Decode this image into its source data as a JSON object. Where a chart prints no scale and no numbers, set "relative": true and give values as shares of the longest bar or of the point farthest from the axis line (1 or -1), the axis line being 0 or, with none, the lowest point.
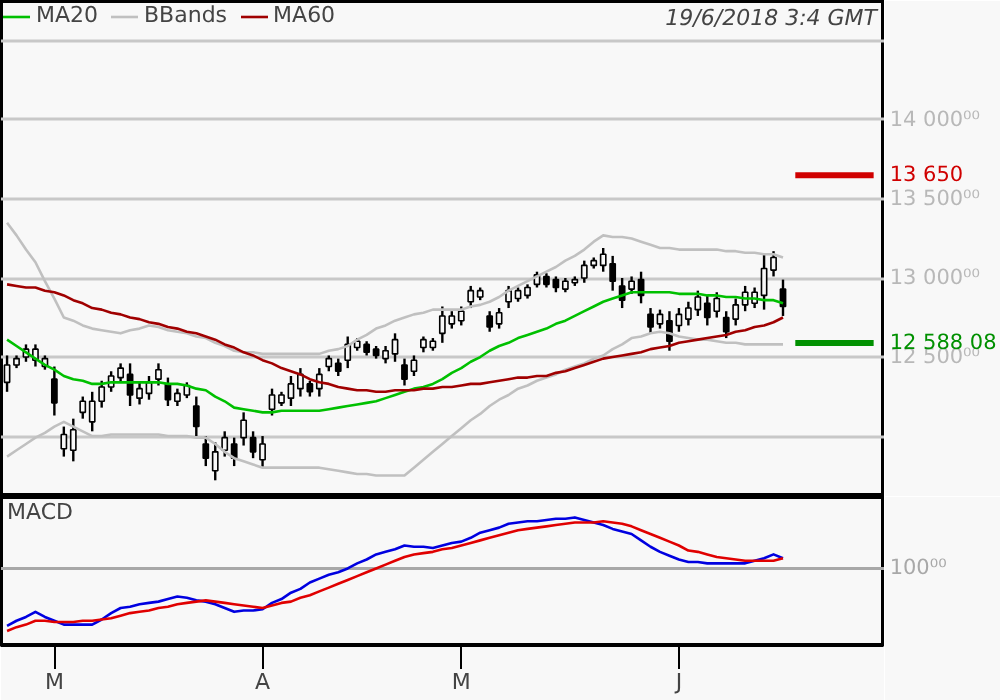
{
  "chart_data": [
    {
      "type": "candlestick",
      "legend": "top left",
      "grid": "y",
      "tick_labels": "y",
      "annotations": [
        "19/6/2018 3:4 GMT"
      ],
      "ylim": [
        11627,
        14753
      ],
      "yticks": [
        {
          "value": 12000,
          "label": null
        },
        {
          "value": 12500,
          "label": "12 500⁰⁰"
        },
        {
          "value": 13000,
          "label": "13 000⁰⁰"
        },
        {
          "value": 13500,
          "label": "13 500⁰⁰"
        },
        {
          "value": 14000,
          "label": "14 000⁰⁰"
        },
        {
          "value": 14500,
          "label": null
        }
      ],
      "categories": [
        null,
        null,
        null,
        null,
        null,
        null,
        null,
        null,
        null,
        null,
        null,
        null,
        null,
        null,
        null,
        null,
        null,
        null,
        null,
        null,
        null,
        null,
        null,
        null,
        null,
        null,
        null,
        null,
        null,
        null,
        null,
        null,
        null,
        null,
        null,
        null,
        null,
        null,
        null,
        null,
        null,
        null,
        null,
        null,
        null,
        null,
        null,
        null,
        null,
        null,
        null,
        null,
        null,
        null,
        null,
        null,
        null,
        null,
        null,
        null,
        null,
        null,
        null,
        null,
        null,
        null,
        null,
        null,
        null,
        null,
        null,
        null,
        null,
        null,
        null,
        null,
        null,
        null,
        null,
        null,
        null,
        null,
        null
      ],
      "ohlc": [
        [
          12340,
          12510,
          12280,
          12450
        ],
        [
          12450,
          12510,
          12430,
          12490
        ],
        [
          12500,
          12580,
          12470,
          12550
        ],
        [
          12480,
          12580,
          12440,
          12550
        ],
        [
          12440,
          12510,
          12420,
          12490
        ],
        [
          12360,
          12440,
          12130,
          12210
        ],
        [
          11920,
          12060,
          11870,
          12010
        ],
        [
          11910,
          12110,
          11840,
          12040
        ],
        [
          12150,
          12250,
          12110,
          12220
        ],
        [
          12090,
          12280,
          12030,
          12220
        ],
        [
          12220,
          12350,
          12180,
          12310
        ],
        [
          12310,
          12410,
          12280,
          12380
        ],
        [
          12370,
          12460,
          12340,
          12430
        ],
        [
          12390,
          12460,
          12190,
          12260
        ],
        [
          12240,
          12340,
          12200,
          12300
        ],
        [
          12270,
          12380,
          12230,
          12340
        ],
        [
          12360,
          12460,
          12320,
          12420
        ],
        [
          12330,
          12370,
          12190,
          12230
        ],
        [
          12220,
          12300,
          12190,
          12270
        ],
        [
          12260,
          12340,
          12240,
          12320
        ],
        [
          12190,
          12250,
          12000,
          12060
        ],
        [
          11950,
          12000,
          11810,
          11860
        ],
        [
          11780,
          11960,
          11720,
          11900
        ],
        [
          11910,
          12030,
          11870,
          11990
        ],
        [
          11950,
          11990,
          11810,
          11860
        ],
        [
          11990,
          12150,
          11940,
          12100
        ],
        [
          11990,
          12030,
          11860,
          11900
        ],
        [
          11850,
          12000,
          11800,
          11950
        ],
        [
          12170,
          12300,
          12130,
          12260
        ],
        [
          12210,
          12280,
          12190,
          12260
        ],
        [
          12240,
          12380,
          12190,
          12330
        ],
        [
          12300,
          12430,
          12250,
          12390
        ],
        [
          12330,
          12350,
          12250,
          12280
        ],
        [
          12300,
          12430,
          12250,
          12390
        ],
        [
          12440,
          12510,
          12410,
          12490
        ],
        [
          12460,
          12490,
          12380,
          12410
        ],
        [
          12480,
          12630,
          12430,
          12580
        ],
        [
          12560,
          12620,
          12540,
          12600
        ],
        [
          12580,
          12600,
          12510,
          12530
        ],
        [
          12550,
          12570,
          12490,
          12510
        ],
        [
          12490,
          12570,
          12460,
          12540
        ],
        [
          12520,
          12650,
          12470,
          12610
        ],
        [
          12450,
          12490,
          12320,
          12360
        ],
        [
          12410,
          12510,
          12380,
          12480
        ],
        [
          12560,
          12630,
          12530,
          12610
        ],
        [
          12560,
          12620,
          12540,
          12600
        ],
        [
          12650,
          12820,
          12590,
          12760
        ],
        [
          12710,
          12790,
          12680,
          12760
        ],
        [
          12730,
          12820,
          12700,
          12790
        ],
        [
          12850,
          12950,
          12810,
          12920
        ],
        [
          12880,
          12940,
          12860,
          12920
        ],
        [
          12760,
          12790,
          12660,
          12690
        ],
        [
          12710,
          12810,
          12680,
          12780
        ],
        [
          12850,
          12950,
          12810,
          12920
        ],
        [
          12870,
          12940,
          12850,
          12920
        ],
        [
          12890,
          12960,
          12870,
          12940
        ],
        [
          12960,
          13040,
          12940,
          13020
        ],
        [
          13010,
          13030,
          12940,
          12960
        ],
        [
          12990,
          13010,
          12910,
          12940
        ],
        [
          12930,
          13000,
          12910,
          12980
        ],
        [
          12970,
          13010,
          12950,
          12990
        ],
        [
          13000,
          13110,
          12970,
          13080
        ],
        [
          13080,
          13130,
          13060,
          13110
        ],
        [
          13080,
          13190,
          13040,
          13150
        ],
        [
          13090,
          13140,
          12920,
          12980
        ],
        [
          12950,
          13000,
          12810,
          12860
        ],
        [
          12930,
          13010,
          12900,
          12980
        ],
        [
          12990,
          13040,
          12840,
          12890
        ],
        [
          12770,
          12810,
          12650,
          12690
        ],
        [
          12710,
          12800,
          12680,
          12770
        ],
        [
          12730,
          12790,
          12540,
          12600
        ],
        [
          12700,
          12810,
          12660,
          12770
        ],
        [
          12740,
          12850,
          12700,
          12810
        ],
        [
          12800,
          12920,
          12760,
          12880
        ],
        [
          12840,
          12890,
          12700,
          12750
        ],
        [
          12790,
          12910,
          12750,
          12870
        ],
        [
          12750,
          12790,
          12620,
          12660
        ],
        [
          12740,
          12870,
          12700,
          12830
        ],
        [
          12830,
          12950,
          12790,
          12910
        ],
        [
          12840,
          12940,
          12810,
          12910
        ],
        [
          12890,
          13150,
          12800,
          13060
        ],
        [
          13050,
          13170,
          13010,
          13130
        ],
        [
          12930,
          12990,
          12760,
          12820
        ]
      ],
      "color": "#000000",
      "series": [
        {
          "type": "line",
          "name": "MA20",
          "color": "#00c000",
          "values": [
            12610,
            12570,
            12530,
            12490,
            12450,
            12420,
            12380,
            12360,
            12350,
            12330,
            12330,
            12340,
            12340,
            12340,
            12340,
            12340,
            12340,
            12330,
            12330,
            12320,
            12300,
            12290,
            12250,
            12220,
            12180,
            12170,
            12160,
            12150,
            12150,
            12160,
            12160,
            12160,
            12160,
            12160,
            12170,
            12180,
            12190,
            12200,
            12210,
            12220,
            12240,
            12260,
            12280,
            12300,
            12310,
            12330,
            12360,
            12400,
            12430,
            12470,
            12500,
            12540,
            12570,
            12590,
            12620,
            12640,
            12660,
            12680,
            12710,
            12730,
            12760,
            12790,
            12820,
            12850,
            12870,
            12890,
            12910,
            12910,
            12910,
            12910,
            12910,
            12900,
            12900,
            12900,
            12890,
            12890,
            12880,
            12880,
            12870,
            12870,
            12860,
            12860,
            12840
          ]
        },
        {
          "type": "line",
          "name": "BBands",
          "color": "#c0c0c0",
          "values": [
            13350,
            13270,
            13180,
            13100,
            12980,
            12870,
            12750,
            12730,
            12700,
            12680,
            12670,
            12660,
            12650,
            12670,
            12680,
            12700,
            12690,
            12670,
            12660,
            12650,
            12630,
            12620,
            12590,
            12570,
            12540,
            12530,
            12530,
            12520,
            12520,
            12520,
            12520,
            12520,
            12520,
            12520,
            12540,
            12550,
            12570,
            12610,
            12640,
            12680,
            12700,
            12730,
            12750,
            12770,
            12780,
            12800,
            12800,
            12800,
            12800,
            12820,
            12830,
            12850,
            12880,
            12920,
            12950,
            12980,
            13010,
            13040,
            13070,
            13110,
            13140,
            13180,
            13230,
            13270,
            13260,
            13260,
            13250,
            13230,
            13210,
            13190,
            13190,
            13180,
            13180,
            13180,
            13180,
            13180,
            13170,
            13170,
            13160,
            13160,
            13150,
            13150,
            13130
          ]
        },
        {
          "type": "line",
          "color": "#c0c0c0",
          "values": [
            11870,
            11910,
            11950,
            11990,
            12020,
            12060,
            12090,
            12060,
            12030,
            12000,
            12000,
            12010,
            12010,
            12010,
            12010,
            12010,
            12010,
            12000,
            12000,
            12000,
            11990,
            11990,
            11950,
            11900,
            11860,
            11840,
            11820,
            11800,
            11800,
            11800,
            11800,
            11800,
            11800,
            11800,
            11790,
            11780,
            11770,
            11760,
            11760,
            11750,
            11750,
            11750,
            11750,
            11800,
            11850,
            11900,
            11950,
            12000,
            12050,
            12100,
            12140,
            12190,
            12230,
            12260,
            12300,
            12320,
            12350,
            12370,
            12390,
            12420,
            12440,
            12460,
            12490,
            12510,
            12550,
            12580,
            12620,
            12630,
            12650,
            12660,
            12650,
            12630,
            12620,
            12610,
            12610,
            12600,
            12590,
            12590,
            12580,
            12580,
            12580,
            12580,
            12580
          ]
        },
        {
          "type": "line",
          "name": "MA60",
          "color": "#a00000",
          "values": [
            12960,
            12950,
            12940,
            12940,
            12920,
            12910,
            12890,
            12860,
            12840,
            12810,
            12800,
            12780,
            12770,
            12750,
            12740,
            12720,
            12710,
            12690,
            12680,
            12660,
            12650,
            12630,
            12610,
            12580,
            12560,
            12530,
            12510,
            12480,
            12460,
            12430,
            12410,
            12390,
            12360,
            12340,
            12330,
            12310,
            12300,
            12290,
            12290,
            12280,
            12280,
            12290,
            12290,
            12290,
            12300,
            12300,
            12310,
            12310,
            12320,
            12330,
            12330,
            12340,
            12350,
            12360,
            12370,
            12370,
            12380,
            12380,
            12400,
            12410,
            12430,
            12450,
            12470,
            12490,
            12500,
            12510,
            12520,
            12530,
            12550,
            12560,
            12570,
            12590,
            12600,
            12610,
            12620,
            12630,
            12640,
            12660,
            12670,
            12690,
            12700,
            12720,
            12750
          ]
        }
      ],
      "ref_lines": [
        {
          "axis": "y",
          "value": 13650,
          "label": "13 650",
          "color": "#d00000"
        },
        {
          "axis": "y",
          "value": 12588.08,
          "label": "12 588 08",
          "color": "#009000"
        }
      ]
    },
    {
      "type": "line",
      "title": "MACD",
      "relative": true,
      "tick_labels": "x",
      "categories": [
        null,
        null,
        null,
        null,
        null,
        "M",
        null,
        null,
        null,
        null,
        null,
        null,
        null,
        null,
        null,
        null,
        null,
        null,
        null,
        null,
        null,
        null,
        null,
        null,
        null,
        null,
        null,
        "A",
        null,
        null,
        null,
        null,
        null,
        null,
        null,
        null,
        null,
        null,
        null,
        null,
        null,
        null,
        null,
        null,
        null,
        null,
        null,
        null,
        "M",
        null,
        null,
        null,
        null,
        null,
        null,
        null,
        null,
        null,
        null,
        null,
        null,
        null,
        null,
        null,
        null,
        null,
        null,
        null,
        null,
        null,
        null,
        "J",
        null,
        null,
        null,
        null,
        null,
        null,
        null,
        null,
        null,
        null,
        null
      ],
      "series": [
        {
          "color": "#0000e0",
          "values": [
            0.15,
            0.19,
            0.22,
            0.26,
            0.22,
            0.19,
            0.16,
            0.16,
            0.16,
            0.16,
            0.2,
            0.25,
            0.29,
            0.3,
            0.32,
            0.33,
            0.34,
            0.36,
            0.38,
            0.37,
            0.35,
            0.34,
            0.32,
            0.29,
            0.26,
            0.27,
            0.27,
            0.28,
            0.33,
            0.36,
            0.41,
            0.44,
            0.49,
            0.52,
            0.55,
            0.57,
            0.6,
            0.64,
            0.67,
            0.71,
            0.73,
            0.75,
            0.78,
            0.77,
            0.77,
            0.76,
            0.78,
            0.8,
            0.81,
            0.84,
            0.88,
            0.9,
            0.92,
            0.95,
            0.96,
            0.97,
            0.97,
            0.98,
            0.99,
            0.99,
            1.0,
            0.98,
            0.96,
            0.94,
            0.91,
            0.89,
            0.87,
            0.82,
            0.77,
            0.73,
            0.7,
            0.67,
            0.65,
            0.65,
            0.64,
            0.64,
            0.64,
            0.64,
            0.64,
            0.66,
            0.68,
            0.71,
            0.68
          ]
        },
        {
          "color": "#e00000",
          "values": [
            0.11,
            0.14,
            0.16,
            0.19,
            0.19,
            0.18,
            0.18,
            0.18,
            0.19,
            0.19,
            0.2,
            0.21,
            0.23,
            0.25,
            0.26,
            0.27,
            0.29,
            0.3,
            0.32,
            0.33,
            0.34,
            0.35,
            0.34,
            0.33,
            0.32,
            0.31,
            0.3,
            0.29,
            0.31,
            0.33,
            0.34,
            0.37,
            0.39,
            0.42,
            0.45,
            0.48,
            0.51,
            0.54,
            0.57,
            0.6,
            0.63,
            0.66,
            0.69,
            0.71,
            0.72,
            0.73,
            0.75,
            0.76,
            0.78,
            0.8,
            0.82,
            0.84,
            0.86,
            0.88,
            0.9,
            0.91,
            0.92,
            0.93,
            0.94,
            0.95,
            0.96,
            0.96,
            0.96,
            0.97,
            0.96,
            0.95,
            0.93,
            0.9,
            0.87,
            0.84,
            0.81,
            0.78,
            0.74,
            0.73,
            0.71,
            0.69,
            0.68,
            0.67,
            0.66,
            0.66,
            0.66,
            0.66,
            0.68
          ]
        }
      ],
      "ref_lines": [
        {
          "axis": "y",
          "value": 0.6,
          "label": "100⁰⁰",
          "color": "#a8a8a8"
        }
      ]
    }
  ]
}
